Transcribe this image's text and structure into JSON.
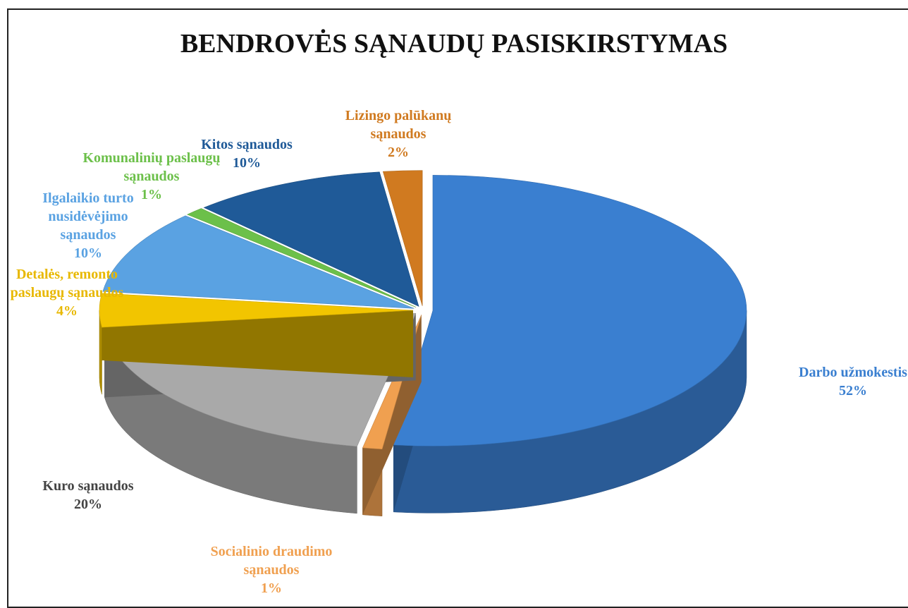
{
  "chart_data": {
    "type": "pie",
    "title": "BENDROVĖS SĄNAUDŲ PASISKIRSTYMAS",
    "categories": [
      "Darbo užmokestis",
      "Socialinio draudimo sąnaudos",
      "Kuro sąnaudos",
      "Detalės, remonto paslaugų sąnaudos",
      "Ilgalaikio turto nusidėvėjimo sąnaudos",
      "Komunalinių paslaugų sąnaudos",
      "Kitos sąnaudos",
      "Lizingo palūkanų sąnaudos"
    ],
    "values": [
      52,
      1,
      20,
      4,
      10,
      1,
      10,
      2
    ],
    "value_labels": [
      "52%",
      "1%",
      "20%",
      "4%",
      "10%",
      "1%",
      "10%",
      "2%"
    ],
    "colors": [
      "#3a7fd0",
      "#f0a050",
      "#a9a9a9",
      "#f2c500",
      "#5aa2e2",
      "#6cc04a",
      "#1f5a98",
      "#d07a20"
    ]
  }
}
